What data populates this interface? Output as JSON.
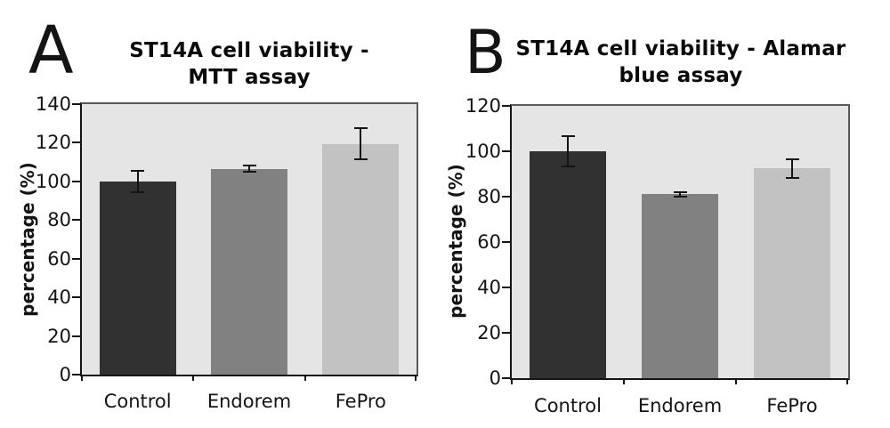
{
  "page": {
    "background": "#ffffff"
  },
  "chart_data": [
    {
      "type": "bar",
      "panel_label": "A",
      "title": "ST14A cell viability - MTT assay",
      "title_display": "ST14A cell viability -\nMTT assay",
      "xlabel": "",
      "ylabel": "percentage (%)",
      "ylim": [
        0,
        140
      ],
      "ytick_step": 20,
      "yticks": [
        0,
        20,
        40,
        60,
        80,
        100,
        120,
        140
      ],
      "categories": [
        "Control",
        "Endorem",
        "FePro"
      ],
      "values": [
        100,
        106.5,
        119.5
      ],
      "error_bars": [
        6,
        2,
        8.5
      ],
      "bar_colors": [
        "#313131",
        "#818181",
        "#c2c2c2"
      ],
      "plot_background": "#e5e5e5",
      "grid": false,
      "legend": false
    },
    {
      "type": "bar",
      "panel_label": "B",
      "title": "ST14A cell viability - Alamar blue assay",
      "title_display": "ST14A cell viability - Alamar\nblue assay",
      "xlabel": "",
      "ylabel": "percentage (%)",
      "ylim": [
        0,
        120
      ],
      "ytick_step": 20,
      "yticks": [
        0,
        20,
        40,
        60,
        80,
        100,
        120
      ],
      "categories": [
        "Control",
        "Endorem",
        "FePro"
      ],
      "values": [
        100,
        81,
        92.5
      ],
      "error_bars": [
        7,
        1.5,
        4.5
      ],
      "bar_colors": [
        "#313131",
        "#818181",
        "#c2c2c2"
      ],
      "plot_background": "#e5e5e5",
      "grid": false,
      "legend": false
    }
  ]
}
